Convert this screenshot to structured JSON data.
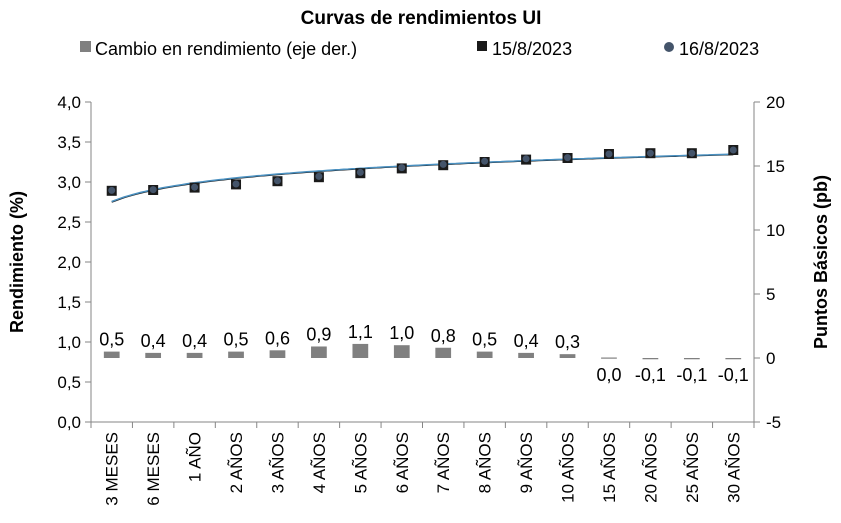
{
  "chart_data": {
    "type": "line",
    "title": "Curvas de rendimientos UI",
    "legend": {
      "placement": "top",
      "entries": [
        {
          "label": "Cambio en rendimiento (eje der.)",
          "marker": "square-gray"
        },
        {
          "label": "15/8/2023",
          "marker": "square-black"
        },
        {
          "label": "16/8/2023",
          "marker": "circle-slate"
        }
      ]
    },
    "categories": [
      "3 MESES",
      "6 MESES",
      "1 AÑO",
      "2 AÑOS",
      "3 AÑOS",
      "4 AÑOS",
      "5 AÑOS",
      "6 AÑOS",
      "7 AÑOS",
      "8 AÑOS",
      "9 AÑOS",
      "10 AÑOS",
      "15 AÑOS",
      "20 AÑOS",
      "25 AÑOS",
      "30 AÑOS"
    ],
    "y_left": {
      "label": "Rendimiento (%)",
      "range": [
        0,
        4
      ],
      "ticks": [
        "0,0",
        "0,5",
        "1,0",
        "1,5",
        "2,0",
        "2,5",
        "3,0",
        "3,5",
        "4,0"
      ]
    },
    "y_right": {
      "label": "Puntos Básicos (pb)",
      "range": [
        -5,
        20
      ],
      "ticks": [
        "-5",
        "0",
        "5",
        "10",
        "15",
        "20"
      ]
    },
    "series": [
      {
        "name": "Cambio en rendimiento (eje der.)",
        "type": "bar",
        "axis": "right",
        "color": "#808080",
        "values": [
          0.5,
          0.4,
          0.4,
          0.5,
          0.6,
          0.9,
          1.1,
          1.0,
          0.8,
          0.5,
          0.4,
          0.3,
          0.0,
          -0.1,
          -0.1,
          -0.1
        ],
        "labels": [
          "0,5",
          "0,4",
          "0,4",
          "0,5",
          "0,6",
          "0,9",
          "1,1",
          "1,0",
          "0,8",
          "0,5",
          "0,4",
          "0,3",
          "0,0",
          "-0,1",
          "-0,1",
          "-0,1"
        ]
      },
      {
        "name": "15/8/2023",
        "type": "scatter",
        "axis": "left",
        "color": "#1a1a1a",
        "values": [
          2.89,
          2.9,
          2.93,
          2.97,
          3.01,
          3.06,
          3.11,
          3.17,
          3.21,
          3.25,
          3.28,
          3.3,
          3.35,
          3.36,
          3.36,
          3.4
        ]
      },
      {
        "name": "16/8/2023",
        "type": "scatter",
        "axis": "left",
        "color": "#44546a",
        "values": [
          2.895,
          2.905,
          2.935,
          2.975,
          3.015,
          3.07,
          3.12,
          3.18,
          3.22,
          3.26,
          3.29,
          3.305,
          3.35,
          3.36,
          3.36,
          3.4
        ]
      }
    ],
    "trendlines": [
      {
        "series": "15/8/2023",
        "type": "log",
        "color": "#1a1a1a"
      },
      {
        "series": "16/8/2023",
        "type": "log",
        "color": "#4a90c0"
      }
    ],
    "grid": false
  }
}
